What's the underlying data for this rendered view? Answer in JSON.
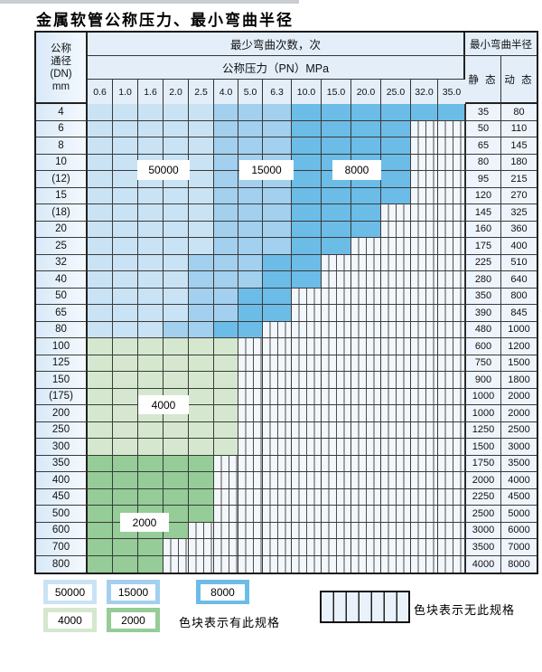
{
  "title": "金属软管公称压力、最小弯曲半径",
  "table": {
    "header": {
      "dn_lines": [
        "公称",
        "通径",
        "(DN)",
        "mm"
      ],
      "bend_times_label": "最少弯曲次数，次",
      "pressure_label": "公称压力（PN）MPa",
      "pressure_values": [
        "0.6",
        "1.0",
        "1.6",
        "2.0",
        "2.5",
        "4.0",
        "5.0",
        "6.3",
        "10.0",
        "15.0",
        "20.0",
        "25.0",
        "32.0",
        "35.0"
      ],
      "radius_label": "最小弯曲半径",
      "static_label": "静 态",
      "dynamic_label": "动 态"
    },
    "rows": [
      {
        "dn": "4",
        "bands": "11111222333333",
        "static": "35",
        "dynamic": "80"
      },
      {
        "dn": "6",
        "bands": "111112223333xx",
        "static": "50",
        "dynamic": "110"
      },
      {
        "dn": "8",
        "bands": "111112223333xx",
        "static": "65",
        "dynamic": "145"
      },
      {
        "dn": "10",
        "bands": "111112223333xx",
        "static": "80",
        "dynamic": "180"
      },
      {
        "dn": "(12)",
        "bands": "111112223333xx",
        "static": "95",
        "dynamic": "215"
      },
      {
        "dn": "15",
        "bands": "111112223333xx",
        "static": "120",
        "dynamic": "270"
      },
      {
        "dn": "(18)",
        "bands": "11111222333xxx",
        "static": "145",
        "dynamic": "325"
      },
      {
        "dn": "20",
        "bands": "11111222333xxx",
        "static": "160",
        "dynamic": "360"
      },
      {
        "dn": "25",
        "bands": "1111122233xxxx",
        "static": "175",
        "dynamic": "400"
      },
      {
        "dn": "32",
        "bands": "111122233xxxxx",
        "static": "225",
        "dynamic": "510"
      },
      {
        "dn": "40",
        "bands": "111122233xxxxx",
        "static": "280",
        "dynamic": "640"
      },
      {
        "dn": "50",
        "bands": "11112233xxxxxx",
        "static": "350",
        "dynamic": "800"
      },
      {
        "dn": "65",
        "bands": "11112233xxxxxx",
        "static": "390",
        "dynamic": "845"
      },
      {
        "dn": "80",
        "bands": "1112233xxxxxxx",
        "static": "480",
        "dynamic": "1000"
      },
      {
        "dn": "100",
        "bands": "444444xxxxxxxx",
        "static": "600",
        "dynamic": "1200"
      },
      {
        "dn": "125",
        "bands": "444444xxxxxxxx",
        "static": "750",
        "dynamic": "1500"
      },
      {
        "dn": "150",
        "bands": "444444xxxxxxxx",
        "static": "900",
        "dynamic": "1800"
      },
      {
        "dn": "(175)",
        "bands": "444444xxxxxxxx",
        "static": "1000",
        "dynamic": "2000"
      },
      {
        "dn": "200",
        "bands": "444444xxxxxxxx",
        "static": "1000",
        "dynamic": "2000"
      },
      {
        "dn": "250",
        "bands": "444444xxxxxxxx",
        "static": "1250",
        "dynamic": "2500"
      },
      {
        "dn": "300",
        "bands": "444444xxxxxxxx",
        "static": "1500",
        "dynamic": "3000"
      },
      {
        "dn": "350",
        "bands": "55555xxxxxxxxx",
        "static": "1750",
        "dynamic": "3500"
      },
      {
        "dn": "400",
        "bands": "55555xxxxxxxxx",
        "static": "2000",
        "dynamic": "4000"
      },
      {
        "dn": "450",
        "bands": "55555xxxxxxxxx",
        "static": "2250",
        "dynamic": "4500"
      },
      {
        "dn": "500",
        "bands": "55555xxxxxxxxx",
        "static": "2500",
        "dynamic": "5000"
      },
      {
        "dn": "600",
        "bands": "5555xxxxxxxxxx",
        "static": "3000",
        "dynamic": "6000"
      },
      {
        "dn": "700",
        "bands": "555xxxxxxxxxxx",
        "static": "3500",
        "dynamic": "7000"
      },
      {
        "dn": "800",
        "bands": "555xxxxxxxxxxx",
        "static": "4000",
        "dynamic": "8000"
      }
    ],
    "overlay_labels": [
      {
        "text": "50000"
      },
      {
        "text": "15000"
      },
      {
        "text": "8000"
      },
      {
        "text": "4000"
      },
      {
        "text": "2000"
      }
    ]
  },
  "colors": {
    "band_50000": "#c9e3f5",
    "band_15000": "#a2d0ee",
    "band_8000": "#6cbce8",
    "band_4000": "#d5e8cf",
    "band_2000": "#95cc97"
  },
  "legend": {
    "items": [
      {
        "value": "50000",
        "color": "#c9e3f5"
      },
      {
        "value": "15000",
        "color": "#a2d0ee"
      },
      {
        "value": "8000",
        "color": "#6cbce8"
      },
      {
        "value": "4000",
        "color": "#d5e8cf"
      },
      {
        "value": "2000",
        "color": "#95cc97"
      }
    ],
    "has_spec_note": "色块表示有此规格",
    "no_spec_note": "色块表示无此规格"
  }
}
